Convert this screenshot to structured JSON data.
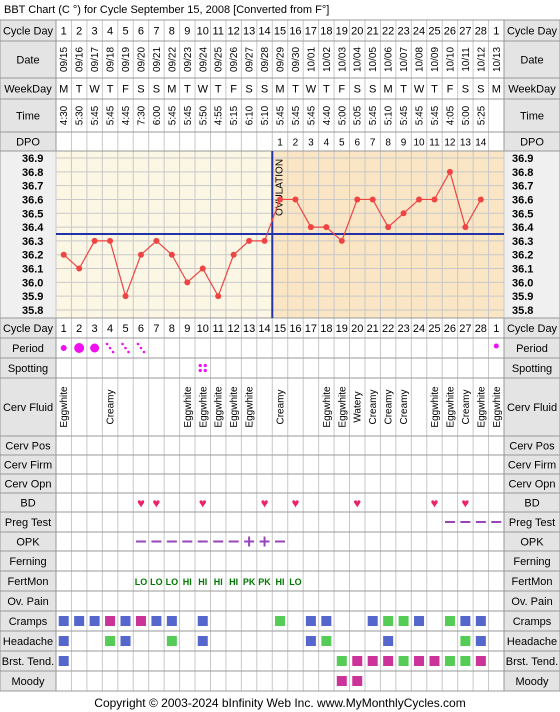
{
  "title": "BBT Chart (C °) for Cycle September 15, 2008  [Converted from F°]",
  "footer": "Copyright © 2003-2024 bInfinity Web Inc.    www.MyMonthlyCycles.com",
  "colors": {
    "pre_ovulation_bg": "#fcf7e4",
    "post_ovulation_bg": "#fae6c4",
    "temp_line": "#ee4444",
    "coverline": "#2233aa",
    "ovulation_line": "#2233aa",
    "header_bg": "#e4e4e4",
    "grid": "#c8c8c8",
    "period": "#ee11ee",
    "fertile_text": "#007700",
    "heart": "#ee2266",
    "opk": "#9944bb",
    "preg_test": "#9944bb",
    "cramps": "#5566cc",
    "headache_alt": "#55cc55",
    "breast": "#cc3399",
    "moody": "#cc3399"
  },
  "labels": {
    "cycle_day": "Cycle Day",
    "date": "Date",
    "weekday": "WeekDay",
    "time": "Time",
    "dpo": "DPO",
    "ovulation": "OVULATION"
  },
  "rows": {
    "period": "Period",
    "spotting": "Spotting",
    "cerv_fluid": "Cerv Fluid",
    "cerv_pos": "Cerv Pos",
    "cerv_firm": "Cerv Firm",
    "cerv_opn": "Cerv Opn",
    "bd": "BD",
    "preg_test": "Preg Test",
    "opk": "OPK",
    "ferning": "Ferning",
    "fertmon": "FertMon",
    "ov_pain": "Ov. Pain",
    "cramps": "Cramps",
    "headache": "Headache",
    "brst_tend": "Brst. Tend.",
    "moody": "Moody"
  },
  "chart_data": {
    "type": "line",
    "title": "BBT Chart (C °) for Cycle September 15, 2008  [Converted from F°]",
    "ylim": [
      35.8,
      36.9
    ],
    "yticks": [
      "36.9",
      "36.8",
      "36.7",
      "36.6",
      "36.5",
      "36.4",
      "36.3",
      "36.2",
      "36.1",
      "36.0",
      "35.9",
      "35.8"
    ],
    "coverline": 36.35,
    "ovulation_day": 14,
    "days": [
      1,
      2,
      3,
      4,
      5,
      6,
      7,
      8,
      9,
      10,
      11,
      12,
      13,
      14,
      15,
      16,
      17,
      18,
      19,
      20,
      21,
      22,
      23,
      24,
      25,
      26,
      27,
      28,
      1
    ],
    "dates": [
      "09/15",
      "09/16",
      "09/17",
      "09/18",
      "09/19",
      "09/20",
      "09/21",
      "09/22",
      "09/23",
      "09/24",
      "09/25",
      "09/26",
      "09/27",
      "09/28",
      "09/29",
      "09/30",
      "10/01",
      "10/02",
      "10/03",
      "10/04",
      "10/05",
      "10/06",
      "10/07",
      "10/08",
      "10/09",
      "10/10",
      "10/11",
      "10/12",
      "10/13"
    ],
    "weekdays": [
      "M",
      "T",
      "W",
      "T",
      "F",
      "S",
      "S",
      "M",
      "T",
      "W",
      "T",
      "F",
      "S",
      "S",
      "M",
      "T",
      "W",
      "T",
      "F",
      "S",
      "S",
      "M",
      "T",
      "W",
      "T",
      "F",
      "S",
      "S",
      "M"
    ],
    "times": [
      "4:30",
      "5:30",
      "5:45",
      "5:45",
      "4:45",
      "7:30",
      "6:00",
      "5:45",
      "5:45",
      "5:50",
      "4:55",
      "5:15",
      "6:10",
      "5:10",
      "5:45",
      "5:45",
      "5:45",
      "4:40",
      "5:00",
      "5:05",
      "5:45",
      "5:10",
      "5:45",
      "5:45",
      "5:45",
      "4:05",
      "5:00",
      "5:25",
      ""
    ],
    "dpo": [
      "",
      "",
      "",
      "",
      "",
      "",
      "",
      "",
      "",
      "",
      "",
      "",
      "",
      "",
      "1",
      "2",
      "3",
      "4",
      "5",
      "6",
      "7",
      "8",
      "9",
      "10",
      "11",
      "12",
      "13",
      "14",
      ""
    ],
    "temperatures": [
      36.2,
      36.1,
      36.3,
      36.3,
      35.9,
      36.2,
      36.3,
      36.2,
      36.0,
      36.1,
      35.9,
      36.2,
      36.3,
      36.3,
      36.6,
      36.6,
      36.4,
      36.4,
      36.3,
      36.6,
      36.6,
      36.4,
      36.5,
      36.6,
      36.6,
      36.8,
      36.4,
      36.6,
      null
    ],
    "period": [
      "heavy",
      "heavy",
      "heavy",
      "spot",
      "spot",
      "spot",
      "",
      "",
      "",
      "",
      "",
      "",
      "",
      "",
      "",
      "",
      "",
      "",
      "",
      "",
      "",
      "",
      "",
      "",
      "",
      "",
      "",
      "",
      "light"
    ],
    "spotting": [
      10
    ],
    "cerv_fluid": [
      "Eggwhite",
      "",
      "",
      "Creamy",
      "",
      "",
      "",
      "",
      "Eggwhite",
      "Eggwhite",
      "Eggwhite",
      "Eggwhite",
      "Eggwhite",
      "",
      "Creamy",
      "",
      "",
      "Eggwhite",
      "Eggwhite",
      "Watery",
      "Creamy",
      "Creamy",
      "Creamy",
      "",
      "Eggwhite",
      "Eggwhite",
      "Creamy",
      "Eggwhite",
      "Eggwhite"
    ],
    "bd": [
      6,
      7,
      10,
      14,
      16,
      20,
      25,
      27
    ],
    "preg_test": [
      26,
      27,
      28,
      29
    ],
    "opk": [
      "",
      "",
      "",
      "",
      "",
      "neg",
      "neg",
      "neg",
      "neg",
      "neg",
      "neg",
      "neg",
      "pos",
      "pos",
      "neg",
      "",
      "",
      "",
      "",
      "",
      "",
      "",
      "",
      "",
      "",
      "",
      "",
      "",
      ""
    ],
    "fertmon": [
      "",
      "",
      "",
      "",
      "",
      "LO",
      "LO",
      "LO",
      "HI",
      "HI",
      "HI",
      "HI",
      "PK",
      "PK",
      "HI",
      "LO",
      "",
      "",
      "",
      "",
      "",
      "",
      "",
      "",
      "",
      "",
      "",
      "",
      ""
    ],
    "cramps": [
      {
        "day": 1,
        "c": "b"
      },
      {
        "day": 2,
        "c": "b"
      },
      {
        "day": 3,
        "c": "b"
      },
      {
        "day": 4,
        "c": "m"
      },
      {
        "day": 5,
        "c": "b"
      },
      {
        "day": 6,
        "c": "m"
      },
      {
        "day": 7,
        "c": "b"
      },
      {
        "day": 8,
        "c": "b"
      },
      {
        "day": 10,
        "c": "b"
      },
      {
        "day": 15,
        "c": "g"
      },
      {
        "day": 17,
        "c": "b"
      },
      {
        "day": 18,
        "c": "b"
      },
      {
        "day": 21,
        "c": "b"
      },
      {
        "day": 22,
        "c": "g"
      },
      {
        "day": 23,
        "c": "g"
      },
      {
        "day": 24,
        "c": "b"
      },
      {
        "day": 26,
        "c": "g"
      },
      {
        "day": 27,
        "c": "b"
      },
      {
        "day": 28,
        "c": "b"
      }
    ],
    "headache": [
      {
        "day": 1,
        "c": "b"
      },
      {
        "day": 4,
        "c": "g"
      },
      {
        "day": 5,
        "c": "b"
      },
      {
        "day": 8,
        "c": "g"
      },
      {
        "day": 10,
        "c": "b"
      },
      {
        "day": 17,
        "c": "b"
      },
      {
        "day": 18,
        "c": "g"
      },
      {
        "day": 22,
        "c": "b"
      },
      {
        "day": 27,
        "c": "g"
      },
      {
        "day": 28,
        "c": "b"
      }
    ],
    "brst_tend": [
      {
        "day": 1,
        "c": "b"
      },
      {
        "day": 19,
        "c": "g"
      },
      {
        "day": 20,
        "c": "m"
      },
      {
        "day": 21,
        "c": "m"
      },
      {
        "day": 22,
        "c": "m"
      },
      {
        "day": 23,
        "c": "g"
      },
      {
        "day": 24,
        "c": "m"
      },
      {
        "day": 25,
        "c": "m"
      },
      {
        "day": 26,
        "c": "g"
      },
      {
        "day": 27,
        "c": "g"
      },
      {
        "day": 28,
        "c": "m"
      }
    ],
    "moody": [
      {
        "day": 19,
        "c": "m"
      },
      {
        "day": 20,
        "c": "m"
      }
    ]
  }
}
